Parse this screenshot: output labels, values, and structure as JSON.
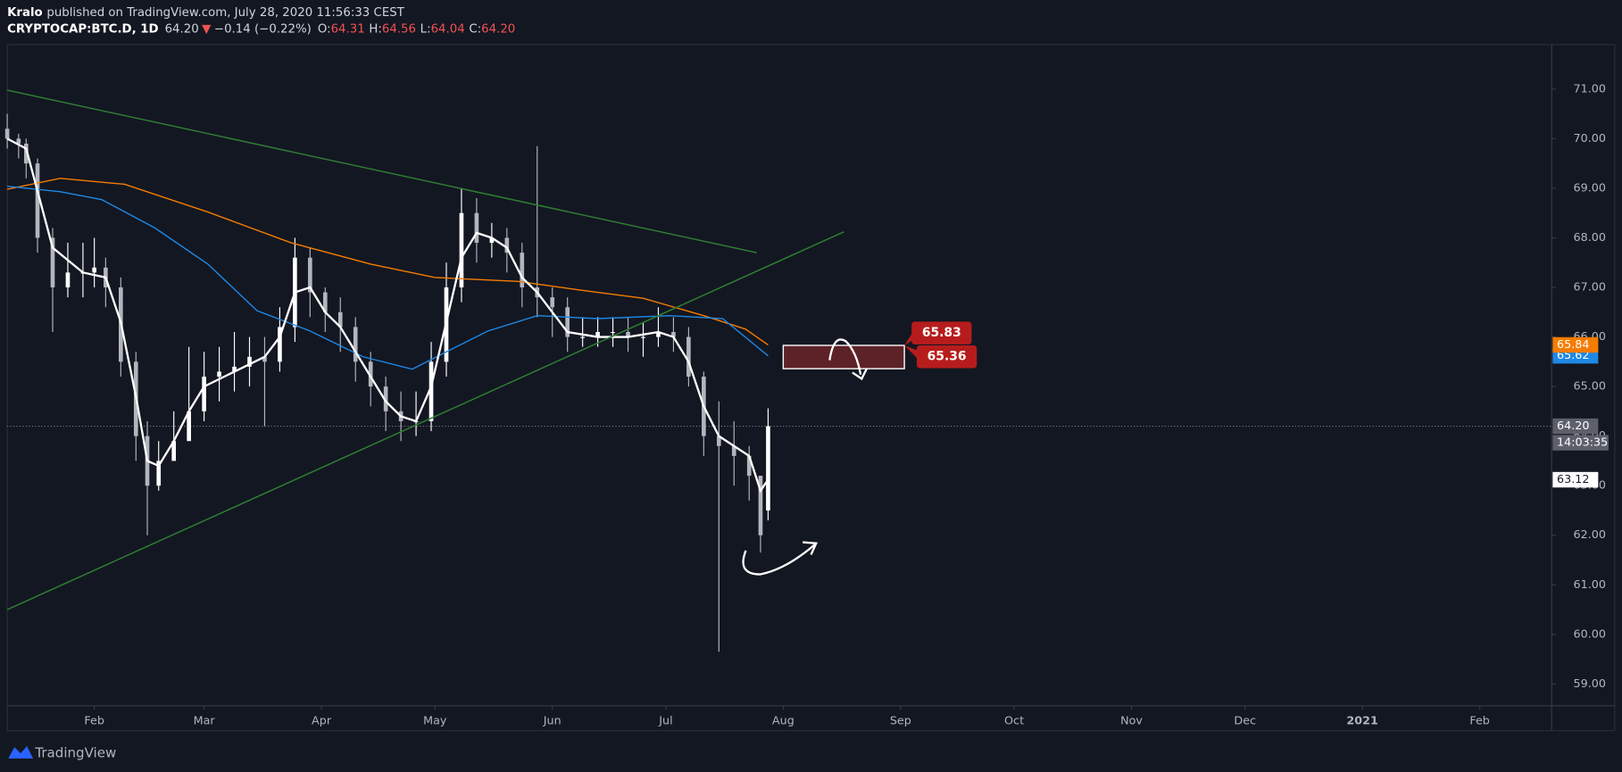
{
  "header": {
    "author": "Kralo",
    "published": "published on TradingView.com, July 28, 2020 11:56:33 CEST",
    "symbol": "CRYPTOCAP:BTC.D, 1D",
    "last": "64.20",
    "change_arrow": "▼",
    "change": "−0.14 (−0.22%)",
    "ohlc": [
      {
        "key": "O:",
        "value": "64.31"
      },
      {
        "key": "H:",
        "value": "64.56"
      },
      {
        "key": "L:",
        "value": "64.04"
      },
      {
        "key": "C:",
        "value": "64.20"
      }
    ]
  },
  "footer": {
    "brand": "TradingView"
  },
  "chart_data": {
    "type": "candlestick",
    "xlim": [
      8,
      416
    ],
    "ylim": [
      58.56,
      71.9
    ],
    "xticks": [
      {
        "value": 31,
        "label": "Feb"
      },
      {
        "value": 60,
        "label": "Mar"
      },
      {
        "value": 91,
        "label": "Apr"
      },
      {
        "value": 121,
        "label": "May"
      },
      {
        "value": 152,
        "label": "Jun"
      },
      {
        "value": 182,
        "label": "Jul"
      },
      {
        "value": 213,
        "label": "Aug"
      },
      {
        "value": 244,
        "label": "Sep"
      },
      {
        "value": 274,
        "label": "Oct"
      },
      {
        "value": 305,
        "label": "Nov"
      },
      {
        "value": 335,
        "label": "Dec"
      },
      {
        "value": 366,
        "label": "2021"
      },
      {
        "value": 397,
        "label": "Feb"
      }
    ],
    "yticks": [
      {
        "value": 59,
        "label": "59.00"
      },
      {
        "value": 60,
        "label": "60.00"
      },
      {
        "value": 61,
        "label": "61.00"
      },
      {
        "value": 62,
        "label": "62.00"
      },
      {
        "value": 63,
        "label": "63.00"
      },
      {
        "value": 64,
        "label": "64.00"
      },
      {
        "value": 65,
        "label": "65.00"
      },
      {
        "value": 66,
        "label": "66.00"
      },
      {
        "value": 67,
        "label": "67.00"
      },
      {
        "value": 68,
        "label": "68.00"
      },
      {
        "value": 69,
        "label": "69.00"
      },
      {
        "value": 70,
        "label": "70.00"
      },
      {
        "value": 71,
        "label": "71.00"
      }
    ],
    "up_color": "#ffffff",
    "down_color": "#b2b5be",
    "x": [
      8,
      11,
      13,
      16,
      20,
      24,
      28,
      31,
      34,
      38,
      42,
      45,
      48,
      52,
      56,
      60,
      64,
      68,
      72,
      76,
      80,
      84,
      88,
      92,
      96,
      100,
      104,
      108,
      112,
      116,
      120,
      124,
      128,
      132,
      136,
      140,
      144,
      148,
      152,
      156,
      160,
      164,
      168,
      172,
      176,
      180,
      184,
      188,
      192,
      196,
      200,
      204,
      207,
      209
    ],
    "open": [
      70.2,
      70.0,
      69.9,
      69.5,
      68.0,
      67.0,
      67.3,
      67.3,
      67.4,
      67.0,
      65.5,
      64.0,
      63.0,
      63.5,
      63.9,
      64.5,
      65.2,
      65.3,
      65.4,
      65.6,
      65.5,
      66.2,
      67.6,
      66.9,
      66.5,
      66.2,
      65.5,
      65.0,
      64.5,
      64.3,
      64.3,
      65.5,
      67.0,
      68.5,
      67.9,
      68.0,
      67.7,
      67.0,
      66.8,
      66.6,
      66.0,
      66.0,
      66.1,
      66.1,
      66.0,
      66.0,
      66.1,
      66.0,
      65.2,
      64.0,
      63.8,
      63.6,
      63.2,
      62.5
    ],
    "high": [
      70.5,
      70.1,
      70.0,
      69.6,
      68.2,
      67.9,
      67.9,
      68.0,
      67.6,
      67.2,
      65.7,
      64.3,
      63.9,
      64.5,
      65.8,
      65.7,
      65.8,
      66.1,
      66.0,
      66.0,
      66.6,
      68.0,
      67.8,
      67.0,
      66.8,
      66.4,
      65.7,
      65.2,
      64.9,
      64.9,
      65.9,
      67.5,
      69.0,
      68.8,
      68.3,
      68.2,
      67.9,
      69.85,
      67.0,
      66.8,
      66.4,
      66.4,
      66.4,
      66.4,
      66.3,
      66.6,
      66.4,
      66.2,
      65.3,
      64.7,
      64.3,
      63.8,
      63.2,
      64.56
    ],
    "low": [
      69.8,
      69.6,
      69.2,
      67.7,
      66.1,
      66.8,
      66.8,
      67.0,
      66.6,
      65.2,
      63.5,
      62.0,
      62.9,
      63.6,
      64.0,
      64.3,
      64.7,
      64.9,
      65.0,
      64.2,
      65.3,
      65.9,
      66.4,
      66.1,
      65.7,
      65.1,
      64.6,
      64.1,
      63.9,
      64.0,
      64.1,
      65.2,
      66.7,
      67.5,
      67.6,
      67.3,
      66.6,
      66.4,
      66.0,
      65.7,
      65.8,
      65.8,
      65.8,
      65.7,
      65.6,
      65.8,
      65.7,
      65.0,
      63.6,
      59.65,
      63.0,
      62.7,
      61.65,
      62.3
    ],
    "close": [
      70.0,
      69.9,
      69.5,
      68.0,
      67.0,
      67.3,
      67.3,
      67.4,
      67.0,
      65.5,
      64.0,
      63.0,
      63.5,
      63.9,
      64.5,
      65.2,
      65.3,
      65.4,
      65.6,
      65.5,
      66.2,
      67.6,
      66.9,
      66.5,
      66.2,
      65.5,
      65.0,
      64.5,
      64.3,
      64.3,
      65.5,
      67.0,
      68.5,
      67.9,
      68.0,
      67.7,
      67.0,
      66.8,
      66.6,
      66.0,
      66.0,
      66.1,
      66.1,
      66.0,
      66.0,
      66.1,
      66.0,
      65.2,
      64.0,
      63.8,
      63.6,
      63.2,
      62.0,
      64.2
    ],
    "lines": [
      {
        "color": "#f57c00",
        "width": 1.2,
        "x": [
          8,
          22,
          39,
          61,
          83,
          104,
          121,
          143,
          159,
          176,
          192,
          203,
          209
        ],
        "values": [
          68.98,
          69.2,
          69.08,
          68.52,
          67.9,
          67.47,
          67.2,
          67.12,
          66.95,
          66.78,
          66.43,
          66.16,
          65.84
        ]
      },
      {
        "color": "#1e88e5",
        "width": 1.2,
        "x": [
          8,
          22,
          33,
          47,
          61,
          74,
          88,
          102,
          115,
          124,
          135,
          148,
          164,
          183,
          197,
          209
        ],
        "values": [
          69.04,
          68.93,
          68.77,
          68.2,
          67.47,
          66.53,
          66.12,
          65.6,
          65.35,
          65.7,
          66.12,
          66.43,
          66.37,
          66.43,
          66.37,
          65.62
        ]
      },
      {
        "color": "#ffffff",
        "width": 2,
        "x": [
          8,
          13,
          20,
          28,
          34,
          38,
          42,
          45,
          48,
          52,
          56,
          60,
          68,
          76,
          80,
          84,
          88,
          92,
          96,
          100,
          104,
          108,
          112,
          116,
          120,
          124,
          128,
          132,
          136,
          140,
          144,
          148,
          152,
          156,
          164,
          172,
          180,
          184,
          188,
          192,
          196,
          200,
          204,
          207,
          209
        ],
        "values": [
          70.0,
          69.8,
          67.8,
          67.3,
          67.2,
          66.3,
          64.8,
          63.5,
          63.4,
          63.9,
          64.5,
          65.0,
          65.3,
          65.6,
          66.0,
          66.9,
          67.0,
          66.5,
          66.2,
          65.7,
          65.2,
          64.7,
          64.4,
          64.3,
          65.0,
          66.3,
          67.6,
          68.1,
          68.0,
          67.8,
          67.2,
          66.9,
          66.5,
          66.1,
          66.0,
          66.0,
          66.1,
          66.0,
          65.5,
          64.6,
          64.0,
          63.8,
          63.6,
          62.9,
          63.12
        ]
      },
      {
        "color": "#2e7d32",
        "width": 1.3,
        "x": [
          8,
          206
        ],
        "values": [
          70.98,
          67.7
        ]
      },
      {
        "color": "#2e7d32",
        "width": 1.3,
        "x": [
          8,
          229
        ],
        "values": [
          60.5,
          68.12
        ]
      }
    ],
    "zone": {
      "x": [
        213,
        245
      ],
      "top": 65.83,
      "bottom": 65.36,
      "fill": "#5d2228",
      "stroke": "#ffffff",
      "tag_color": "#b71c1c"
    },
    "price_tags": [
      {
        "value": 65.62,
        "color": "#1e88e5",
        "text_color": "#ffffff"
      },
      {
        "value": 65.84,
        "color": "#f57c00",
        "text_color": "#ffffff"
      },
      {
        "value": 63.12,
        "color": "#ffffff",
        "text_color": "#131722"
      }
    ],
    "last_price": {
      "value": 64.2,
      "label": "64.20",
      "countdown": "14:03:35",
      "color": "#5d606b"
    }
  }
}
